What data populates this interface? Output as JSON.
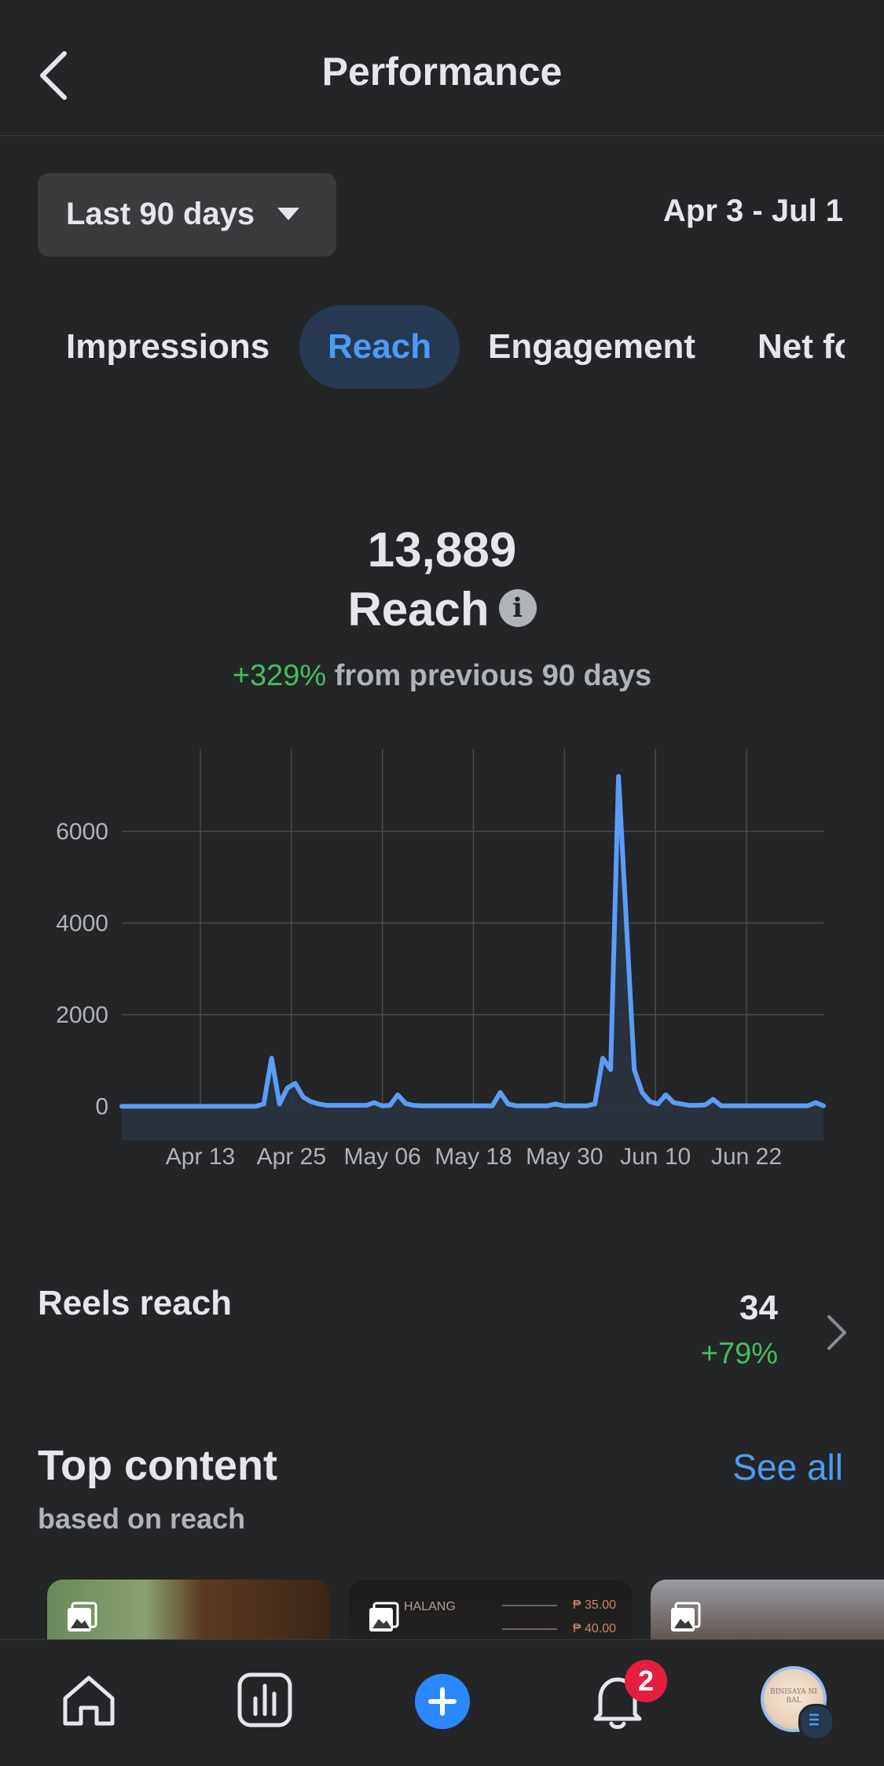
{
  "header": {
    "title": "Performance",
    "back_icon": "chevron-left-icon"
  },
  "filters": {
    "period_label": "Last 90 days",
    "date_range": "Apr 3 - Jul 1"
  },
  "tabs": [
    {
      "label": "Impressions",
      "active": false
    },
    {
      "label": "Reach",
      "active": true
    },
    {
      "label": "Engagement",
      "active": false
    },
    {
      "label": "Net fo",
      "active": false
    }
  ],
  "summary": {
    "value": "13,889",
    "metric": "Reach",
    "change": "+329%",
    "change_text": "from previous 90 days"
  },
  "colors": {
    "accent": "#4e9bf5",
    "positive": "#45bd62",
    "background": "#242526",
    "line": "#5b9cf6"
  },
  "chart_data": {
    "type": "line",
    "x_tick_labels": [
      "Apr 13",
      "Apr 25",
      "May 06",
      "May 18",
      "May 30",
      "Jun 10",
      "Jun 22"
    ],
    "y_ticks": [
      0,
      2000,
      4000,
      6000
    ],
    "ylim": [
      -750,
      7800
    ],
    "grid": true,
    "series": [
      {
        "x": [
          0,
          1,
          2,
          3,
          4,
          5,
          6,
          7,
          8,
          9,
          10,
          11,
          12,
          13,
          14,
          15,
          16,
          17,
          18,
          19,
          20,
          21,
          22,
          23,
          24,
          25,
          26,
          27,
          28,
          29,
          30,
          31,
          32,
          33,
          34,
          35,
          36,
          37,
          38,
          39,
          40,
          41,
          42,
          43,
          44,
          45,
          46,
          47,
          48,
          49,
          50,
          51,
          52,
          53,
          54,
          55,
          56,
          57,
          58,
          59,
          60,
          61,
          62,
          63,
          64,
          65,
          66,
          67,
          68,
          69,
          70,
          71,
          72,
          73,
          74,
          75,
          76,
          77,
          78,
          79,
          80,
          81,
          82,
          83,
          84,
          85,
          86,
          87,
          88,
          89
        ],
        "y": [
          0,
          0,
          0,
          0,
          0,
          0,
          0,
          0,
          0,
          0,
          0,
          0,
          0,
          0,
          0,
          0,
          0,
          0,
          50,
          1050,
          50,
          400,
          500,
          200,
          100,
          50,
          20,
          20,
          20,
          20,
          20,
          20,
          80,
          10,
          20,
          250,
          60,
          20,
          10,
          10,
          10,
          10,
          10,
          10,
          10,
          10,
          10,
          10,
          300,
          50,
          10,
          10,
          10,
          10,
          10,
          50,
          10,
          10,
          10,
          10,
          50,
          1050,
          800,
          7200,
          4000,
          800,
          300,
          100,
          50,
          250,
          80,
          50,
          20,
          20,
          30,
          150,
          10,
          10,
          10,
          10,
          10,
          10,
          10,
          10,
          10,
          10,
          10,
          10,
          80,
          10
        ]
      }
    ]
  },
  "reels": {
    "label": "Reels reach",
    "value": "34",
    "change": "+79%"
  },
  "top_content": {
    "title": "Top content",
    "subtitle": "based on reach",
    "see_all": "See all",
    "items": [
      {
        "type_icon": "photo-icon"
      },
      {
        "type_icon": "photo-icon",
        "title_text": "HALANG",
        "prices": [
          "₱ 35.00",
          "₱ 40.00"
        ]
      },
      {
        "type_icon": "photo-icon"
      }
    ]
  },
  "bottom_nav": {
    "items": [
      "home-icon",
      "insights-icon",
      "create-icon",
      "notifications-icon",
      "profile-avatar"
    ],
    "notification_count": "2",
    "avatar_text": "BINISAYA NI BAL"
  }
}
